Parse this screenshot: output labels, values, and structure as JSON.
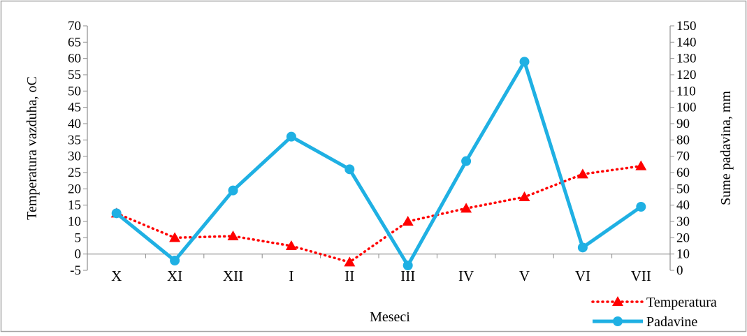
{
  "chart_data": {
    "type": "line",
    "xlabel": "Meseci",
    "ylabel": "Temperatura vazduha, oC",
    "y2label": "Sume padavina, mm",
    "categories": [
      "X",
      "XI",
      "XII",
      "I",
      "II",
      "III",
      "IV",
      "V",
      "VI",
      "VII"
    ],
    "ylim": [
      -5,
      70
    ],
    "y2lim": [
      0,
      150
    ],
    "yticks": [
      "-5",
      "0",
      "5",
      "10",
      "15",
      "20",
      "25",
      "30",
      "35",
      "40",
      "45",
      "50",
      "55",
      "60",
      "65",
      "70"
    ],
    "y2ticks": [
      "0",
      "10",
      "20",
      "30",
      "40",
      "50",
      "60",
      "70",
      "80",
      "90",
      "100",
      "110",
      "120",
      "130",
      "140",
      "150"
    ],
    "grid": false,
    "legend_position": "bottom-right",
    "series": [
      {
        "name": "Temperatura",
        "axis": "left",
        "color": "#ff0000",
        "line_style": "dotted",
        "marker": "triangle",
        "values": [
          12.5,
          5,
          5.5,
          2.5,
          -2.5,
          10,
          14,
          17.5,
          24.5,
          27
        ]
      },
      {
        "name": "Padavine",
        "axis": "right",
        "color": "#1fb0e3",
        "line_style": "solid",
        "marker": "circle",
        "values": [
          35,
          6,
          49,
          82,
          62,
          3,
          67,
          128,
          14,
          39
        ]
      }
    ]
  }
}
